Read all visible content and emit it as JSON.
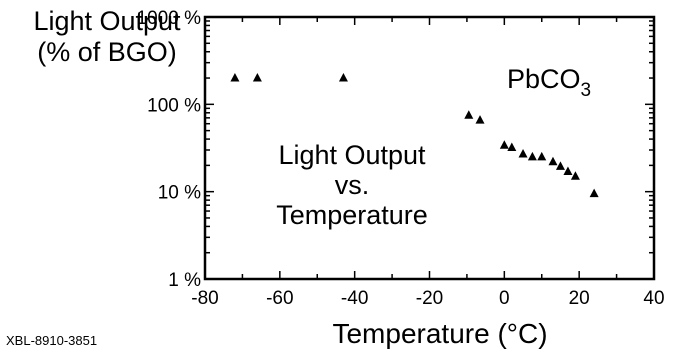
{
  "chart_data": {
    "type": "scatter",
    "title": "",
    "xlabel": "Temperature (°C)",
    "ylabel_line1": "Light Output",
    "ylabel_line2": "(% of BGO)",
    "y_scale": "log",
    "xlim": [
      -80,
      40
    ],
    "ylim": [
      1,
      1000
    ],
    "x_ticks": [
      -80,
      -60,
      -40,
      -20,
      0,
      20,
      40
    ],
    "x_tick_labels": [
      "-80",
      "-60",
      "-40",
      "-20",
      "0",
      "20",
      "40"
    ],
    "y_ticks": [
      1,
      10,
      100,
      1000
    ],
    "y_tick_labels": [
      "1 %",
      "10 %",
      "100 %",
      "1000 %"
    ],
    "grid": false,
    "marker": "triangle",
    "series": [
      {
        "x": [
          -72,
          -66,
          -43,
          -9.5,
          -6.5,
          0,
          2,
          5,
          7.5,
          10,
          13,
          15,
          17,
          19,
          24
        ],
        "y": [
          200,
          200,
          200,
          75,
          66,
          34,
          32,
          27,
          25,
          25,
          22,
          19.5,
          17,
          15,
          9.5
        ]
      }
    ],
    "annotations": {
      "compound_base": "PbCO",
      "compound_sub": "3",
      "note_line1": "Light Output",
      "note_line2": "vs.",
      "note_line3": "Temperature"
    }
  },
  "figure_id": "XBL-8910-3851"
}
